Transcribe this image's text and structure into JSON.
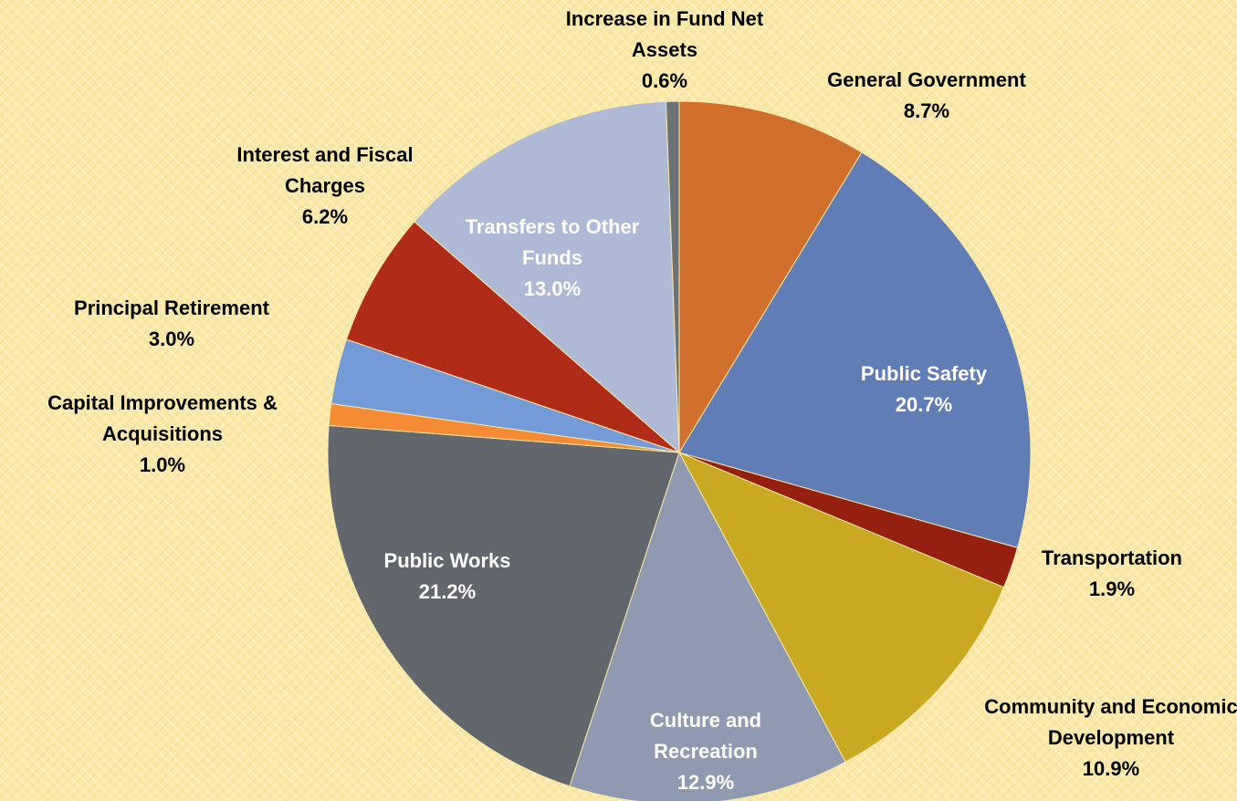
{
  "chart_data": {
    "type": "pie",
    "categories": [
      "General Government",
      "Public Safety",
      "Transportation",
      "Community and Economic Development",
      "Culture and Recreation",
      "Public Works",
      "Capital Improvements & Acquisitions",
      "Principal Retirement",
      "Interest and Fiscal Charges",
      "Transfers to Other Funds",
      "Increase in Fund Net Assets"
    ],
    "values": [
      8.7,
      20.7,
      1.9,
      10.9,
      12.9,
      21.2,
      1.0,
      3.0,
      6.2,
      13.0,
      0.6
    ],
    "value_labels": [
      "8.7%",
      "20.7%",
      "1.9%",
      "10.9%",
      "12.9%",
      "21.2%",
      "1.0%",
      "3.0%",
      "6.2%",
      "13.0%",
      "0.6%"
    ],
    "colors": [
      "#d06e2c",
      "#607db5",
      "#962010",
      "#c9a922",
      "#8f9ab0",
      "#62676e",
      "#f58b34",
      "#729bd8",
      "#b02b18",
      "#adb9d5",
      "#6c7175"
    ]
  }
}
